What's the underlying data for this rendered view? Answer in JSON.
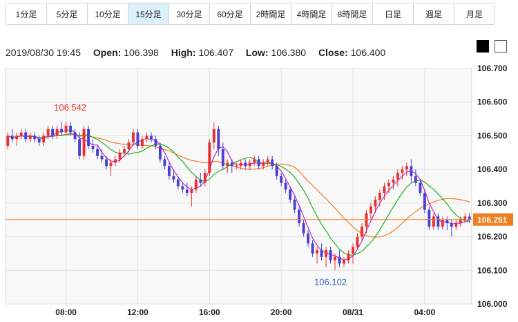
{
  "timeframes": [
    {
      "label": "1分足",
      "active": false
    },
    {
      "label": "5分足",
      "active": false
    },
    {
      "label": "10分足",
      "active": false
    },
    {
      "label": "15分足",
      "active": true
    },
    {
      "label": "30分足",
      "active": false
    },
    {
      "label": "60分足",
      "active": false
    },
    {
      "label": "2時間足",
      "active": false
    },
    {
      "label": "4時間足",
      "active": false
    },
    {
      "label": "8時間足",
      "active": false
    },
    {
      "label": "日足",
      "active": false
    },
    {
      "label": "週足",
      "active": false
    },
    {
      "label": "月足",
      "active": false
    }
  ],
  "ohlc": {
    "datetime": "2019/08/30 19:45",
    "open_label": "Open:",
    "open": "106.398",
    "high_label": "High:",
    "high": "106.407",
    "low_label": "Low:",
    "low": "106.380",
    "close_label": "Close:",
    "close": "106.400"
  },
  "theme_swatches": [
    "dark-theme",
    "light-theme"
  ],
  "chart_data": {
    "type": "candlestick",
    "ylim": [
      106.0,
      106.7
    ],
    "yticks": [
      "106.700",
      "106.600",
      "106.500",
      "106.400",
      "106.300",
      "106.200",
      "106.100",
      "106.000"
    ],
    "xtick_labels": [
      "08:00",
      "12:00",
      "16:00",
      "20:00",
      "08/31",
      "04:00"
    ],
    "xtick_index": [
      13,
      29,
      45,
      61,
      77,
      93
    ],
    "current_price": 106.251,
    "current_price_label": "106.251",
    "high_annotation": {
      "index": 13,
      "value": 106.542,
      "label": "106.542"
    },
    "low_annotation": {
      "index": 72,
      "value": 106.102,
      "label": "106.102"
    },
    "colors": {
      "up": "#e8312f",
      "down": "#4a3fd1",
      "ma_short": "#b32cd1",
      "ma_mid": "#1fb31f",
      "ma_long": "#f07d1f",
      "price_line": "#f07d1f",
      "high_label": "#e8312f",
      "low_label": "#3a6cc7"
    },
    "candles": [
      [
        106.47,
        106.51,
        106.46,
        106.5
      ],
      [
        106.5,
        106.52,
        106.48,
        106.49
      ],
      [
        106.49,
        106.51,
        106.47,
        106.5
      ],
      [
        106.5,
        106.52,
        106.49,
        106.51
      ],
      [
        106.51,
        106.52,
        106.48,
        106.49
      ],
      [
        106.49,
        106.51,
        106.48,
        106.5
      ],
      [
        106.5,
        106.51,
        106.48,
        106.49
      ],
      [
        106.49,
        106.5,
        106.47,
        106.48
      ],
      [
        106.48,
        106.51,
        106.47,
        106.5
      ],
      [
        106.5,
        106.53,
        106.49,
        106.52
      ],
      [
        106.52,
        106.53,
        106.49,
        106.5
      ],
      [
        106.5,
        106.53,
        106.49,
        106.52
      ],
      [
        106.52,
        106.54,
        106.5,
        106.51
      ],
      [
        106.51,
        106.542,
        106.5,
        106.53
      ],
      [
        106.53,
        106.54,
        106.5,
        106.51
      ],
      [
        106.51,
        106.52,
        106.48,
        106.49
      ],
      [
        106.49,
        106.51,
        106.43,
        106.44
      ],
      [
        106.44,
        106.53,
        106.43,
        106.52
      ],
      [
        106.52,
        106.53,
        106.46,
        106.47
      ],
      [
        106.47,
        106.49,
        106.45,
        106.46
      ],
      [
        106.46,
        106.47,
        106.43,
        106.44
      ],
      [
        106.44,
        106.46,
        106.42,
        106.43
      ],
      [
        106.43,
        106.44,
        106.4,
        106.41
      ],
      [
        106.41,
        106.43,
        106.38,
        106.42
      ],
      [
        106.42,
        106.44,
        106.41,
        106.43
      ],
      [
        106.43,
        106.46,
        106.42,
        106.45
      ],
      [
        106.45,
        106.47,
        106.44,
        106.46
      ],
      [
        106.46,
        106.49,
        106.45,
        106.48
      ],
      [
        106.48,
        106.52,
        106.47,
        106.51
      ],
      [
        106.51,
        106.52,
        106.46,
        106.47
      ],
      [
        106.47,
        106.5,
        106.46,
        106.49
      ],
      [
        106.49,
        106.51,
        106.48,
        106.5
      ],
      [
        106.5,
        106.51,
        106.48,
        106.49
      ],
      [
        106.49,
        106.5,
        106.46,
        106.47
      ],
      [
        106.47,
        106.48,
        106.42,
        106.43
      ],
      [
        106.43,
        106.44,
        106.4,
        106.41
      ],
      [
        106.41,
        106.42,
        106.37,
        106.38
      ],
      [
        106.38,
        106.4,
        106.36,
        106.37
      ],
      [
        106.37,
        106.38,
        106.34,
        106.35
      ],
      [
        106.35,
        106.36,
        106.33,
        106.34
      ],
      [
        106.34,
        106.36,
        106.32,
        106.33
      ],
      [
        106.33,
        106.35,
        106.29,
        106.34
      ],
      [
        106.34,
        106.38,
        106.33,
        106.37
      ],
      [
        106.37,
        106.39,
        106.35,
        106.36
      ],
      [
        106.36,
        106.4,
        106.35,
        106.39
      ],
      [
        106.39,
        106.49,
        106.38,
        106.48
      ],
      [
        106.48,
        106.54,
        106.46,
        106.52
      ],
      [
        106.52,
        106.53,
        106.44,
        106.46
      ],
      [
        106.46,
        106.48,
        106.4,
        106.41
      ],
      [
        106.41,
        106.43,
        106.39,
        106.42
      ],
      [
        106.42,
        106.43,
        106.39,
        106.41
      ],
      [
        106.41,
        106.42,
        106.4,
        106.41
      ],
      [
        106.41,
        106.43,
        106.4,
        106.42
      ],
      [
        106.42,
        106.43,
        106.4,
        106.41
      ],
      [
        106.41,
        106.43,
        106.4,
        106.42
      ],
      [
        106.42,
        106.44,
        106.41,
        106.43
      ],
      [
        106.43,
        106.44,
        106.4,
        106.41
      ],
      [
        106.41,
        106.43,
        106.4,
        106.42
      ],
      [
        106.42,
        106.44,
        106.41,
        106.43
      ],
      [
        106.43,
        106.44,
        106.4,
        106.41
      ],
      [
        106.41,
        106.42,
        106.37,
        106.38
      ],
      [
        106.38,
        106.39,
        106.35,
        106.36
      ],
      [
        106.36,
        106.37,
        106.33,
        106.34
      ],
      [
        106.34,
        106.35,
        106.3,
        106.31
      ],
      [
        106.31,
        106.32,
        106.27,
        106.28
      ],
      [
        106.28,
        106.29,
        106.23,
        106.24
      ],
      [
        106.24,
        106.25,
        106.2,
        106.21
      ],
      [
        106.21,
        106.22,
        106.17,
        106.18
      ],
      [
        106.18,
        106.19,
        106.14,
        106.15
      ],
      [
        106.15,
        106.17,
        106.12,
        106.16
      ],
      [
        106.16,
        106.18,
        106.13,
        106.14
      ],
      [
        106.14,
        106.17,
        106.11,
        106.16
      ],
      [
        106.16,
        106.17,
        106.12,
        106.13
      ],
      [
        106.13,
        106.15,
        106.102,
        106.14
      ],
      [
        106.14,
        106.16,
        106.11,
        106.12
      ],
      [
        106.12,
        106.14,
        106.11,
        106.13
      ],
      [
        106.13,
        106.16,
        106.12,
        106.15
      ],
      [
        106.15,
        106.18,
        106.12,
        106.17
      ],
      [
        106.17,
        106.21,
        106.16,
        106.2
      ],
      [
        106.2,
        106.24,
        106.19,
        106.23
      ],
      [
        106.23,
        106.28,
        106.21,
        106.27
      ],
      [
        106.27,
        106.3,
        106.25,
        106.29
      ],
      [
        106.29,
        106.32,
        106.27,
        106.31
      ],
      [
        106.31,
        106.34,
        106.29,
        106.33
      ],
      [
        106.33,
        106.36,
        106.31,
        106.35
      ],
      [
        106.35,
        106.37,
        106.33,
        106.36
      ],
      [
        106.36,
        106.38,
        106.34,
        106.37
      ],
      [
        106.37,
        106.4,
        106.35,
        106.39
      ],
      [
        106.39,
        106.41,
        106.37,
        106.4
      ],
      [
        106.4,
        106.42,
        106.38,
        106.41
      ],
      [
        106.41,
        106.43,
        106.36,
        106.38
      ],
      [
        106.38,
        106.4,
        106.35,
        106.36
      ],
      [
        106.36,
        106.37,
        106.32,
        106.33
      ],
      [
        106.33,
        106.34,
        106.27,
        106.28
      ],
      [
        106.28,
        106.29,
        106.22,
        106.23
      ],
      [
        106.23,
        106.27,
        106.22,
        106.26
      ],
      [
        106.26,
        106.27,
        106.22,
        106.23
      ],
      [
        106.23,
        106.26,
        106.22,
        106.25
      ],
      [
        106.25,
        106.26,
        106.22,
        106.24
      ],
      [
        106.24,
        106.25,
        106.2,
        106.23
      ],
      [
        106.23,
        106.25,
        106.22,
        106.24
      ],
      [
        106.24,
        106.26,
        106.23,
        106.25
      ],
      [
        106.25,
        106.27,
        106.24,
        106.26
      ],
      [
        106.26,
        106.27,
        106.24,
        106.251
      ]
    ]
  }
}
